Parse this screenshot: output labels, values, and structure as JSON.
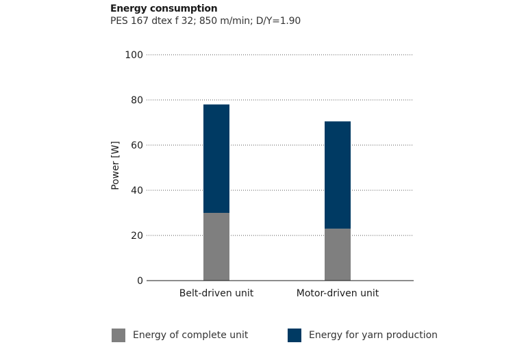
{
  "chart_data": {
    "type": "bar",
    "stacked": true,
    "title": "Energy consumption",
    "subtitle": "PES 167 dtex f 32; 850 m/min; D/Y=1.90",
    "xlabel": "",
    "ylabel": "Power [W]",
    "ylim": [
      0,
      100
    ],
    "yticks": [
      0,
      20,
      40,
      60,
      80,
      100
    ],
    "grid": "dotted horizontal",
    "legend_position": "bottom",
    "categories": [
      "Belt-driven unit",
      "Motor-driven unit"
    ],
    "series": [
      {
        "name": "Energy of complete unit",
        "color": "#7f7f7f",
        "values": [
          30,
          23
        ]
      },
      {
        "name": "Energy for yarn production",
        "color": "#003a63",
        "values": [
          48,
          47.5
        ]
      }
    ]
  }
}
